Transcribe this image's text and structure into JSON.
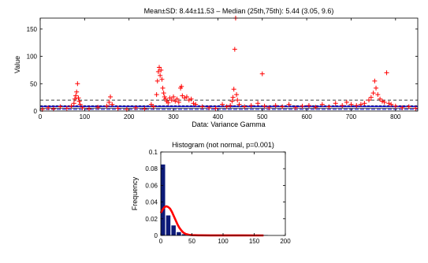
{
  "chart_data": [
    {
      "type": "scatter",
      "title": "Mean±SD: 8.44±11.53 – Median (25th,75th): 5.44 (3.05, 9.6)",
      "xlabel": "Data:  Variance Gamma",
      "ylabel": "Value",
      "xlim": [
        0,
        850
      ],
      "ylim": [
        0,
        170
      ],
      "xticks": [
        0,
        100,
        200,
        300,
        400,
        500,
        600,
        700,
        800
      ],
      "yticks": [
        0,
        50,
        100,
        150
      ],
      "grid": false,
      "reference_lines": {
        "mean": 8.44,
        "median": 5.44,
        "q25": 3.05,
        "q75": 9.6,
        "mean_plus_sd": 19.97
      },
      "series": [
        {
          "marker": "+",
          "color": "#ff0000",
          "points": [
            [
              5,
              3
            ],
            [
              18,
              6
            ],
            [
              30,
              4
            ],
            [
              45,
              8
            ],
            [
              60,
              5
            ],
            [
              70,
              9
            ],
            [
              76,
              14
            ],
            [
              78,
              22
            ],
            [
              80,
              28
            ],
            [
              82,
              35
            ],
            [
              84,
              50
            ],
            [
              86,
              24
            ],
            [
              88,
              18
            ],
            [
              90,
              12
            ],
            [
              95,
              6
            ],
            [
              110,
              4
            ],
            [
              130,
              7
            ],
            [
              150,
              9
            ],
            [
              155,
              16
            ],
            [
              158,
              26
            ],
            [
              162,
              12
            ],
            [
              175,
              5
            ],
            [
              195,
              3
            ],
            [
              215,
              6
            ],
            [
              235,
              4
            ],
            [
              250,
              12
            ],
            [
              255,
              8
            ],
            [
              262,
              30
            ],
            [
              264,
              55
            ],
            [
              266,
              72
            ],
            [
              268,
              80
            ],
            [
              270,
              65
            ],
            [
              272,
              75
            ],
            [
              274,
              58
            ],
            [
              276,
              42
            ],
            [
              278,
              33
            ],
            [
              280,
              26
            ],
            [
              282,
              22
            ],
            [
              285,
              18
            ],
            [
              288,
              15
            ],
            [
              292,
              24
            ],
            [
              296,
              20
            ],
            [
              300,
              26
            ],
            [
              304,
              18
            ],
            [
              308,
              22
            ],
            [
              312,
              16
            ],
            [
              316,
              42
            ],
            [
              318,
              45
            ],
            [
              320,
              28
            ],
            [
              325,
              24
            ],
            [
              330,
              26
            ],
            [
              335,
              20
            ],
            [
              340,
              22
            ],
            [
              345,
              14
            ],
            [
              350,
              12
            ],
            [
              365,
              8
            ],
            [
              380,
              6
            ],
            [
              395,
              5
            ],
            [
              410,
              12
            ],
            [
              420,
              8
            ],
            [
              428,
              10
            ],
            [
              432,
              18
            ],
            [
              434,
              25
            ],
            [
              436,
              40
            ],
            [
              438,
              113
            ],
            [
              440,
              170
            ],
            [
              442,
              30
            ],
            [
              444,
              20
            ],
            [
              448,
              12
            ],
            [
              460,
              8
            ],
            [
              475,
              10
            ],
            [
              490,
              14
            ],
            [
              500,
              68
            ],
            [
              505,
              9
            ],
            [
              515,
              6
            ],
            [
              530,
              10
            ],
            [
              545,
              8
            ],
            [
              560,
              12
            ],
            [
              575,
              6
            ],
            [
              590,
              9
            ],
            [
              605,
              10
            ],
            [
              620,
              7
            ],
            [
              635,
              12
            ],
            [
              650,
              8
            ],
            [
              665,
              14
            ],
            [
              680,
              10
            ],
            [
              690,
              16
            ],
            [
              700,
              12
            ],
            [
              712,
              10
            ],
            [
              722,
              12
            ],
            [
              730,
              14
            ],
            [
              740,
              20
            ],
            [
              745,
              25
            ],
            [
              750,
              33
            ],
            [
              753,
              55
            ],
            [
              756,
              42
            ],
            [
              760,
              30
            ],
            [
              765,
              22
            ],
            [
              770,
              18
            ],
            [
              775,
              16
            ],
            [
              780,
              70
            ],
            [
              785,
              14
            ],
            [
              790,
              12
            ],
            [
              800,
              9
            ],
            [
              815,
              6
            ],
            [
              830,
              8
            ],
            [
              845,
              5
            ]
          ]
        }
      ]
    },
    {
      "type": "bar",
      "title": "Histogram (not normal, p=0.001)",
      "xlabel": "",
      "ylabel": "Frequency",
      "xlim": [
        0,
        200
      ],
      "ylim": [
        0,
        0.1
      ],
      "xticks": [
        0,
        50,
        100,
        150,
        200
      ],
      "yticks": [
        0,
        0.02,
        0.04,
        0.06,
        0.08,
        0.1
      ],
      "bars": {
        "color": "#0c1a78",
        "bin_width": 8.5,
        "bins": [
          [
            0,
            0.085
          ],
          [
            8.5,
            0.024
          ],
          [
            17,
            0.012
          ],
          [
            25.5,
            0.004
          ],
          [
            34,
            0.0015
          ],
          [
            42.5,
            0.0008
          ],
          [
            51,
            0.0004
          ],
          [
            59.5,
            0.0003
          ],
          [
            68,
            0.0002
          ],
          [
            76.5,
            0.0001
          ],
          [
            110,
            0.0002
          ],
          [
            165,
            0.0001
          ]
        ]
      },
      "fit_curve": {
        "color": "#ff0000",
        "x": [
          0,
          3,
          6,
          9,
          12,
          15,
          18,
          21,
          24,
          27,
          30,
          33,
          36,
          40,
          45,
          50,
          60,
          80,
          100,
          130,
          165
        ],
        "y": [
          0.027,
          0.031,
          0.034,
          0.035,
          0.034,
          0.032,
          0.028,
          0.023,
          0.018,
          0.013,
          0.009,
          0.006,
          0.0035,
          0.0018,
          0.0008,
          0.0004,
          0.0002,
          0.0001,
          0.0001,
          0.0001,
          0.0
        ]
      }
    }
  ]
}
